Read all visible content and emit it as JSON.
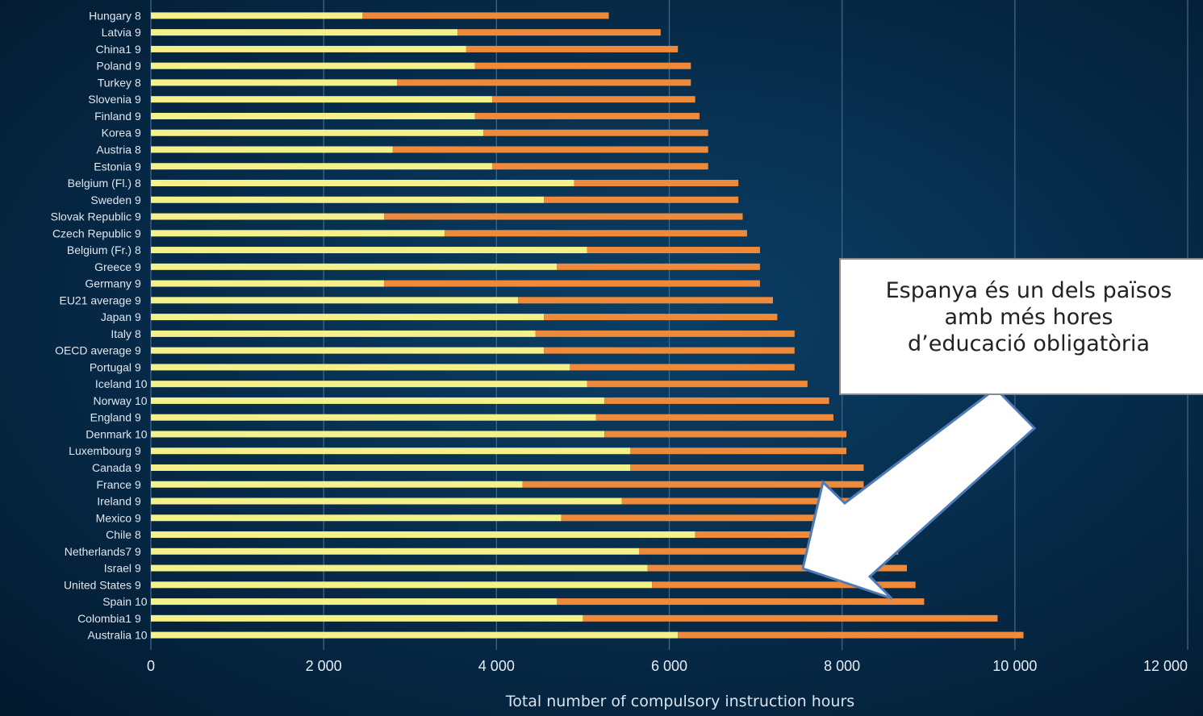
{
  "chart_data": {
    "type": "bar",
    "orientation": "horizontal",
    "stacked": true,
    "xlabel": "Total number of compulsory instruction hours",
    "xlim": [
      0,
      12000
    ],
    "xticks": [
      "0",
      "2 000",
      "4 000",
      "6 000",
      "8 000",
      "10 000",
      "12 000"
    ],
    "grid": true,
    "colors": {
      "primary": "#f4f08a",
      "secondary": "#ee8a3a"
    },
    "categories": [
      {
        "country": "Hungary",
        "years": "8",
        "primary": 2450,
        "total": 5300
      },
      {
        "country": "Latvia",
        "years": "9",
        "primary": 3550,
        "total": 5900
      },
      {
        "country": "China1",
        "years": "9",
        "primary": 3650,
        "total": 6100
      },
      {
        "country": "Poland",
        "years": "9",
        "primary": 3750,
        "total": 6250
      },
      {
        "country": "Turkey",
        "years": "8",
        "primary": 2850,
        "total": 6250
      },
      {
        "country": "Slovenia",
        "years": "9",
        "primary": 3950,
        "total": 6300
      },
      {
        "country": "Finland",
        "years": "9",
        "primary": 3750,
        "total": 6350
      },
      {
        "country": "Korea",
        "years": "9",
        "primary": 3850,
        "total": 6450
      },
      {
        "country": "Austria",
        "years": "8",
        "primary": 2800,
        "total": 6450
      },
      {
        "country": "Estonia",
        "years": "9",
        "primary": 3950,
        "total": 6450
      },
      {
        "country": "Belgium (Fl.)",
        "years": "8",
        "primary": 4900,
        "total": 6800
      },
      {
        "country": "Sweden",
        "years": "9",
        "primary": 4550,
        "total": 6800
      },
      {
        "country": "Slovak Republic",
        "years": "9",
        "primary": 2700,
        "total": 6850
      },
      {
        "country": "Czech Republic",
        "years": "9",
        "primary": 3400,
        "total": 6900
      },
      {
        "country": "Belgium (Fr.)",
        "years": "8",
        "primary": 5050,
        "total": 7050
      },
      {
        "country": "Greece",
        "years": "9",
        "primary": 4700,
        "total": 7050
      },
      {
        "country": "Germany",
        "years": "9",
        "primary": 2700,
        "total": 7050
      },
      {
        "country": "EU21 average",
        "years": "9",
        "primary": 4250,
        "total": 7200
      },
      {
        "country": "Japan",
        "years": "9",
        "primary": 4550,
        "total": 7250
      },
      {
        "country": "Italy",
        "years": "8",
        "primary": 4450,
        "total": 7450
      },
      {
        "country": "OECD average",
        "years": "9",
        "primary": 4550,
        "total": 7450
      },
      {
        "country": "Portugal",
        "years": "9",
        "primary": 4850,
        "total": 7450
      },
      {
        "country": "Iceland",
        "years": "10",
        "primary": 5050,
        "total": 7600
      },
      {
        "country": "Norway",
        "years": "10",
        "primary": 5250,
        "total": 7850
      },
      {
        "country": "England",
        "years": "9",
        "primary": 5150,
        "total": 7900
      },
      {
        "country": "Denmark",
        "years": "10",
        "primary": 5250,
        "total": 8050
      },
      {
        "country": "Luxembourg",
        "years": "9",
        "primary": 5550,
        "total": 8050
      },
      {
        "country": "Canada",
        "years": "9",
        "primary": 5550,
        "total": 8250
      },
      {
        "country": "France",
        "years": "9",
        "primary": 4300,
        "total": 8250
      },
      {
        "country": "Ireland",
        "years": "9",
        "primary": 5450,
        "total": 8250
      },
      {
        "country": "Mexico",
        "years": "9",
        "primary": 4750,
        "total": 8250
      },
      {
        "country": "Chile",
        "years": "8",
        "primary": 6300,
        "total": 8300
      },
      {
        "country": "Netherlands7",
        "years": "9",
        "primary": 5650,
        "total": 8650
      },
      {
        "country": "Israel",
        "years": "9",
        "primary": 5750,
        "total": 8750
      },
      {
        "country": "United States",
        "years": "9",
        "primary": 5800,
        "total": 8850
      },
      {
        "country": "Spain",
        "years": "10",
        "primary": 4700,
        "total": 8950
      },
      {
        "country": "Colombia1",
        "years": "9",
        "primary": 5000,
        "total": 9800
      },
      {
        "country": "Australia",
        "years": "10",
        "primary": 6100,
        "total": 10100
      }
    ]
  },
  "callout": {
    "text": "Espanya és un dels països\namb més hores\nd’educació obligatòria"
  },
  "arrow_color": "#ffffff"
}
